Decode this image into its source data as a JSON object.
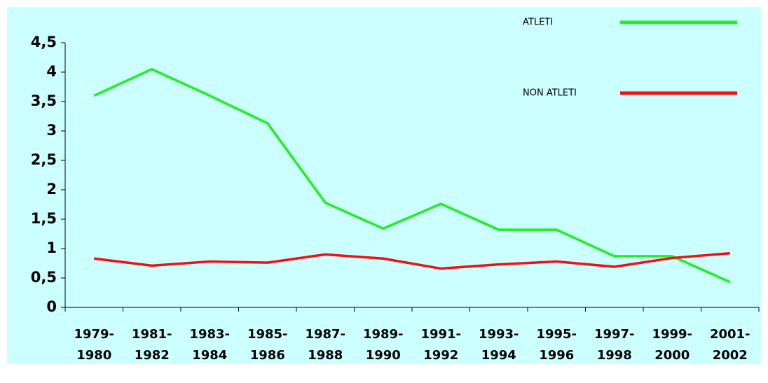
{
  "chart_data": {
    "type": "line",
    "categories": [
      "1979-1980",
      "1981-1982",
      "1983-1984",
      "1985-1986",
      "1987-1988",
      "1989-1990",
      "1991-1992",
      "1993-1994",
      "1995-1996",
      "1997-1998",
      "1999-2000",
      "2001-2002"
    ],
    "series": [
      {
        "name": "ATLETI",
        "color": "#22ee22",
        "values": [
          3.6,
          4.05,
          3.6,
          3.13,
          1.78,
          1.34,
          1.76,
          1.32,
          1.32,
          0.87,
          0.87,
          0.43
        ]
      },
      {
        "name": "NON ATLETI",
        "color": "#ee1111",
        "values": [
          0.83,
          0.71,
          0.78,
          0.76,
          0.9,
          0.83,
          0.66,
          0.73,
          0.78,
          0.69,
          0.84,
          0.92
        ]
      }
    ],
    "ylim": [
      0,
      4.5
    ],
    "yticks": [
      0,
      {
        "value": 0.5,
        "label": "0,5"
      },
      1,
      {
        "value": 1.5,
        "label": "1,5"
      },
      2,
      {
        "value": 2.5,
        "label": "2,5"
      },
      3,
      {
        "value": 3.5,
        "label": "3,5"
      },
      4,
      {
        "value": 4.5,
        "label": "4,5"
      }
    ],
    "background": "#ccffff"
  }
}
